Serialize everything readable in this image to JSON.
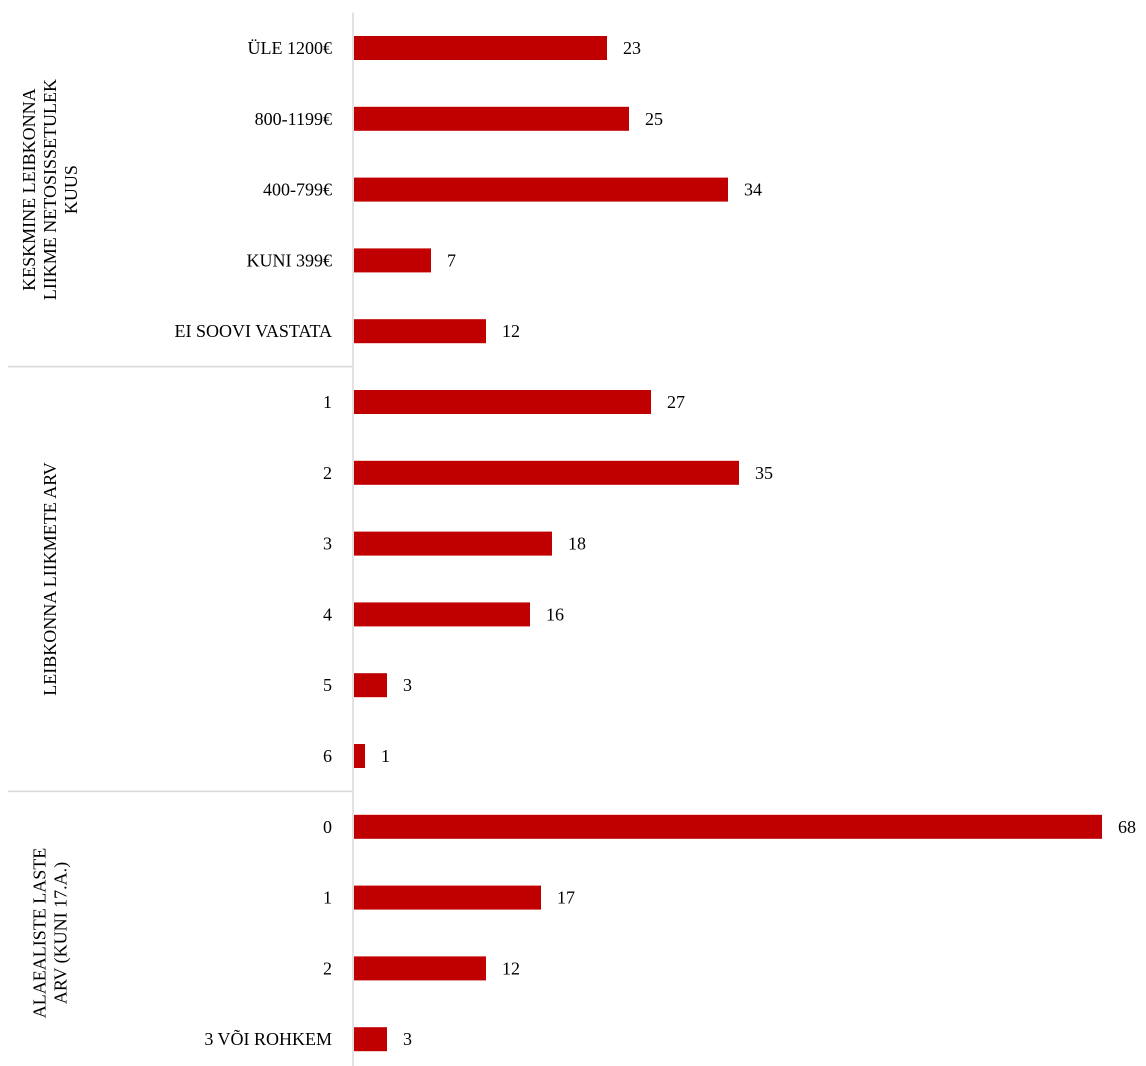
{
  "chart_data": {
    "type": "bar",
    "orientation": "horizontal",
    "bar_color": "#c00000",
    "grid": false,
    "groups": [
      {
        "label_lines": [
          "KESKMINE LEIBKONNA",
          "LIIKME NETOSISSETULEK",
          "KUUS"
        ],
        "categories": [
          "ÜLE 1200€",
          "800-1199€",
          "400-799€",
          "KUNI 399€",
          "EI SOOVI VASTATA"
        ],
        "values": [
          23,
          25,
          34,
          7,
          12
        ]
      },
      {
        "label_lines": [
          "LEIBKONNA LIIKMETE ARV"
        ],
        "categories": [
          "1",
          "2",
          "3",
          "4",
          "5",
          "6"
        ],
        "values": [
          27,
          35,
          18,
          16,
          3,
          1
        ]
      },
      {
        "label_lines": [
          "ALAEALISTE LASTE",
          "ARV (KUNI 17.A.)"
        ],
        "categories": [
          "0",
          "1",
          "2",
          "3 VÕI ROHKEM"
        ],
        "values": [
          68,
          17,
          12,
          3
        ]
      }
    ]
  }
}
